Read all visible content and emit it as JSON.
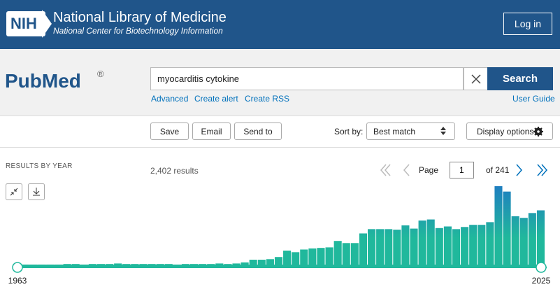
{
  "header": {
    "logo": "NIH",
    "title": "National Library of Medicine",
    "subtitle": "National Center for Biotechnology Information",
    "login": "Log in"
  },
  "search": {
    "logo": "PubMed",
    "registered": "®",
    "query": "myocarditis cytokine",
    "button": "Search",
    "links": [
      "Advanced",
      "Create alert",
      "Create RSS"
    ],
    "help": "User Guide"
  },
  "toolbar": {
    "actions": [
      "Save",
      "Email",
      "Send to"
    ],
    "sort_label": "Sort by:",
    "sort_value": "Best match",
    "display": "Display options"
  },
  "results": {
    "count": "2,402 results",
    "page_label": "Page",
    "page": "1",
    "of": "of 241"
  },
  "timeline": {
    "title": "RESULTS BY YEAR",
    "start": "1963",
    "end": "2025",
    "counts": [
      4,
      4,
      4,
      4,
      4,
      4,
      5,
      5,
      4,
      5,
      5,
      5,
      6,
      5,
      5,
      5,
      5,
      5,
      5,
      4,
      5,
      5,
      5,
      5,
      6,
      5,
      6,
      8,
      13,
      13,
      14,
      18,
      30,
      27,
      32,
      34,
      35,
      36,
      48,
      44,
      44,
      62,
      70,
      70,
      70,
      69,
      77,
      71,
      86,
      88,
      72,
      75,
      70,
      74,
      78,
      78,
      83,
      150,
      140,
      94,
      91,
      100,
      105
    ],
    "color": "#20b89c"
  }
}
